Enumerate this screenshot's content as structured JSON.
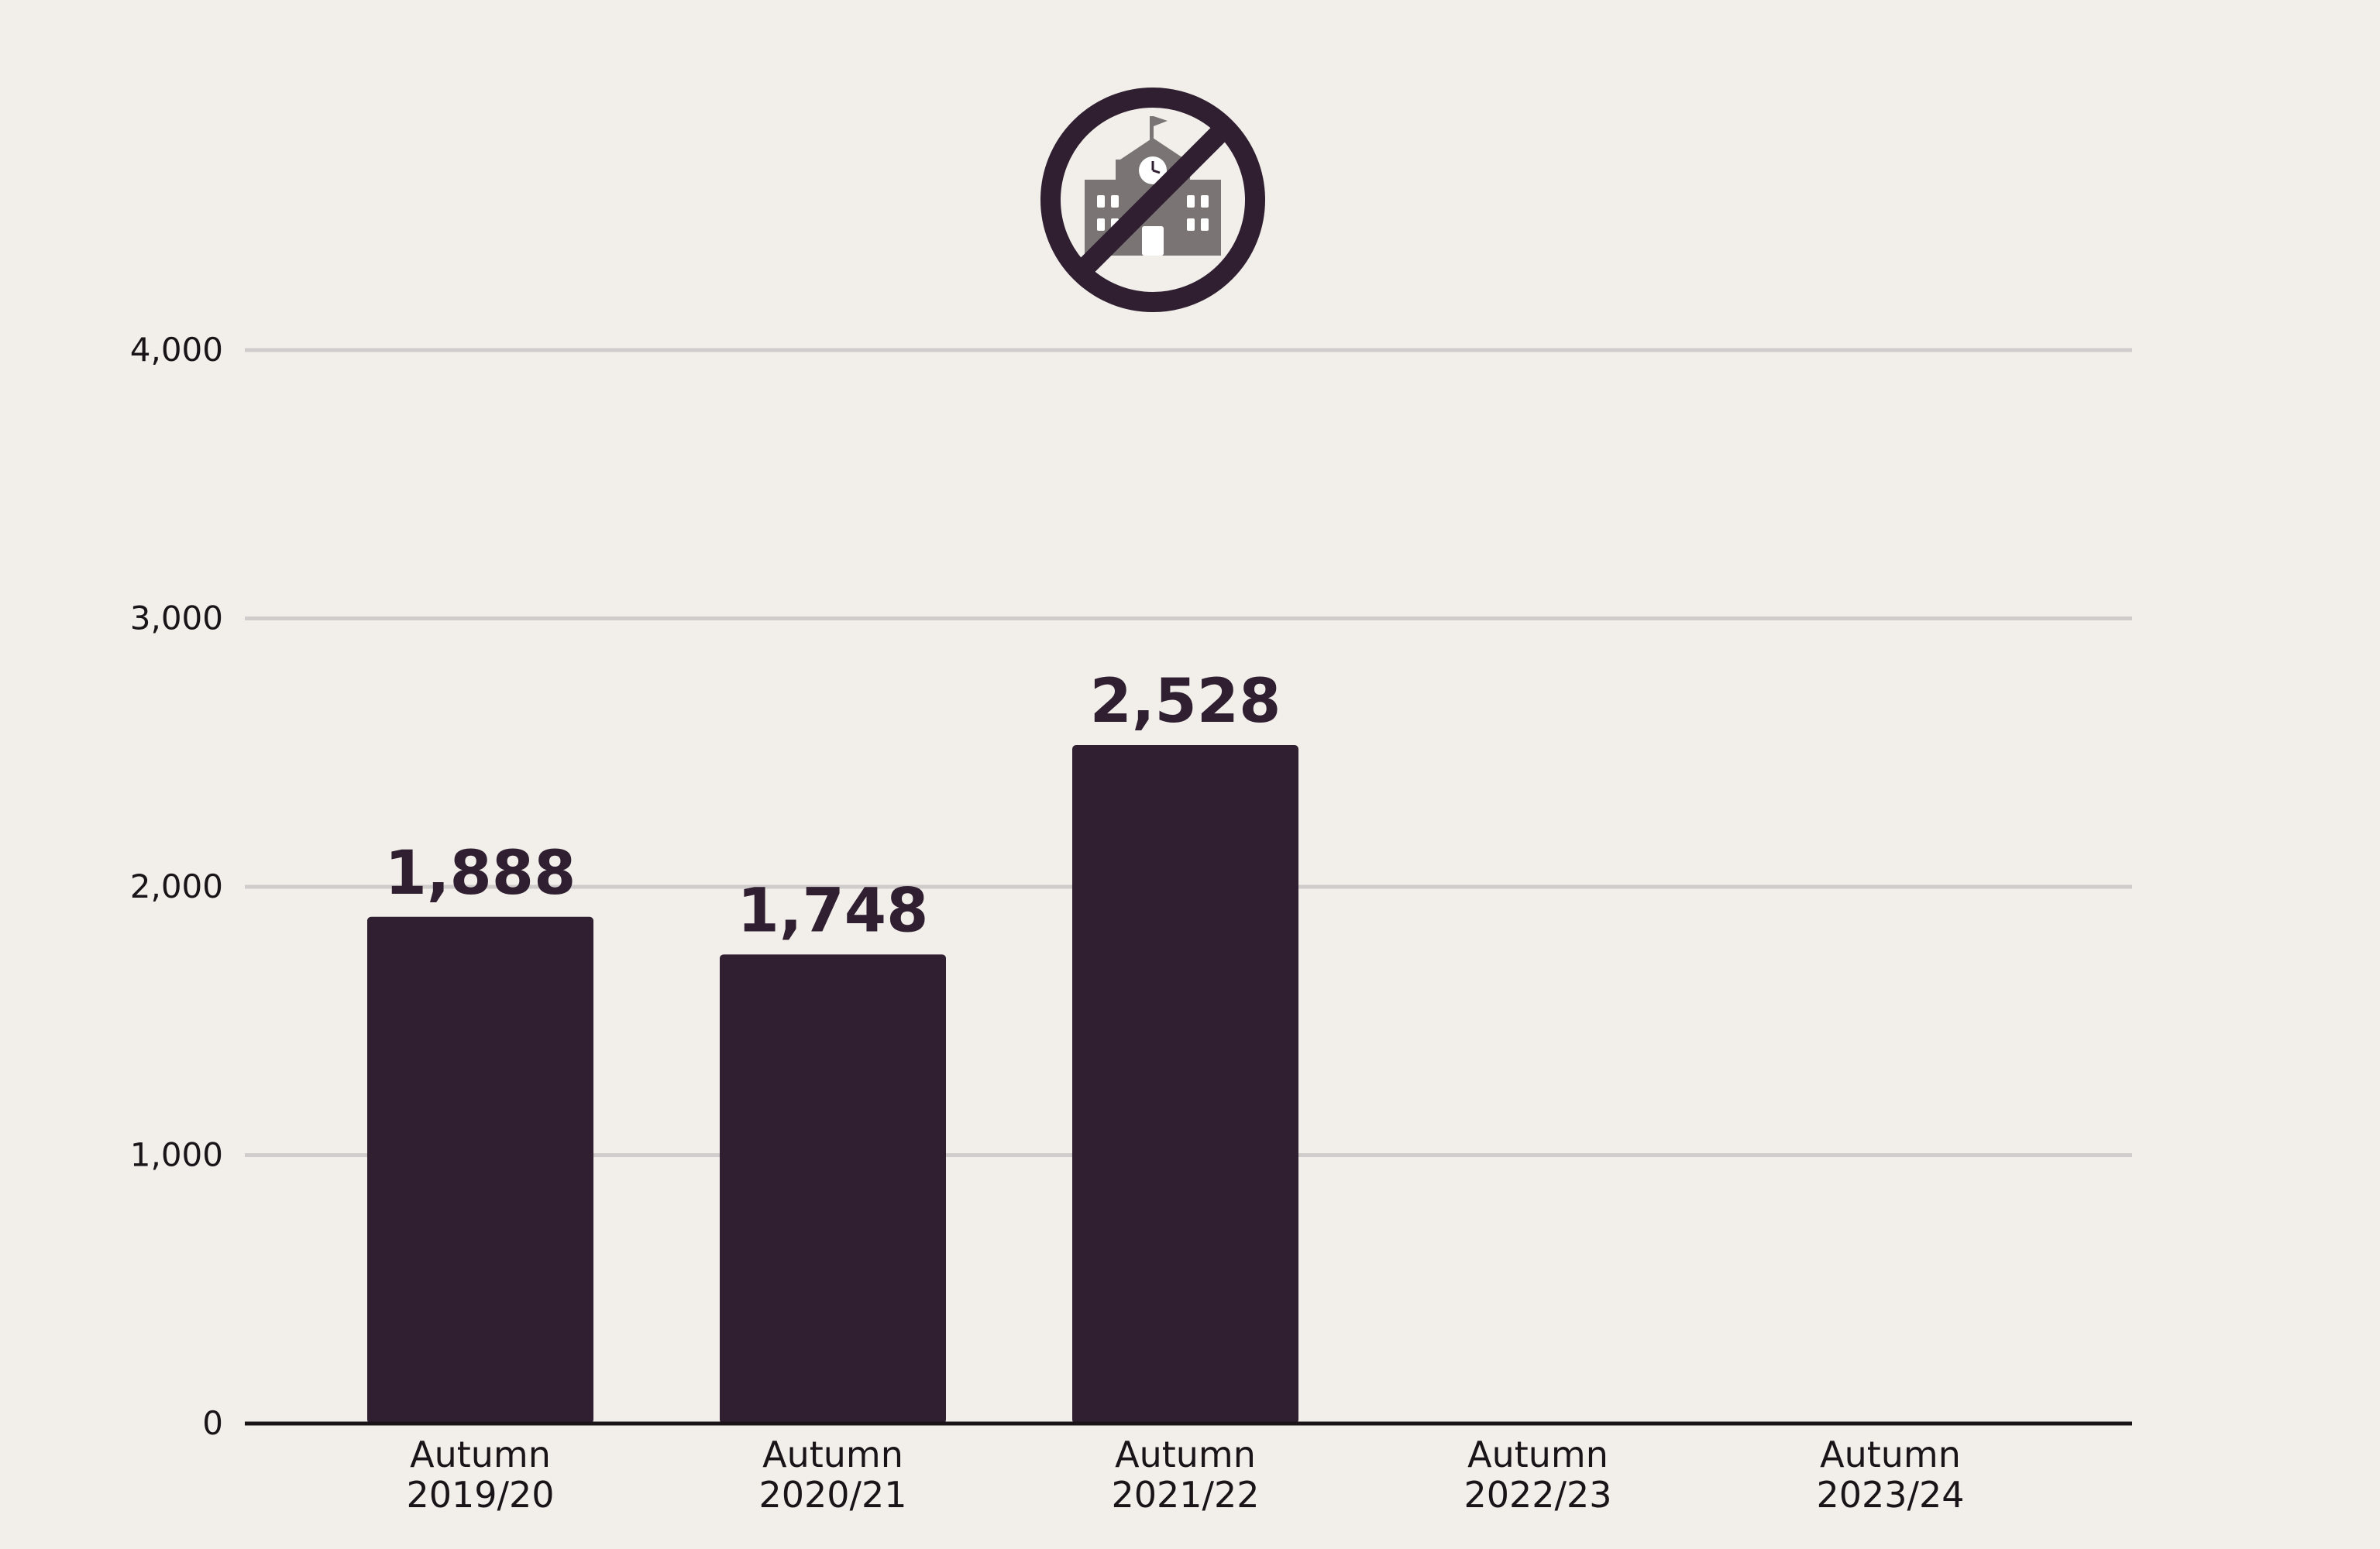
{
  "chart_data": {
    "type": "bar",
    "categories": [
      "Autumn 2019/20",
      "Autumn 2020/21",
      "Autumn 2021/22",
      "Autumn 2022/23",
      "Autumn 2023/24"
    ],
    "category_lines": [
      [
        "Autumn",
        "2019/20"
      ],
      [
        "Autumn",
        "2020/21"
      ],
      [
        "Autumn",
        "2021/22"
      ],
      [
        "Autumn",
        "2022/23"
      ],
      [
        "Autumn",
        "2023/24"
      ]
    ],
    "values": [
      1888,
      1748,
      2528,
      null,
      null
    ],
    "value_labels": [
      "1,888",
      "1,748",
      "2,528",
      "",
      ""
    ],
    "yticks": [
      0,
      1000,
      2000,
      3000,
      4000
    ],
    "ytick_labels": [
      "0",
      "1,000",
      "2,000",
      "3,000",
      "4,000"
    ],
    "ylim": [
      0,
      4000
    ],
    "title": "",
    "xlabel": "",
    "ylabel": "",
    "grid": true,
    "icon": "no-school-icon",
    "colors": {
      "bar": "#2f1f30",
      "background": "#f2efeb",
      "grid": "#cfcccb",
      "axis": "#1a1418",
      "icon_building": "#7a7574"
    }
  }
}
